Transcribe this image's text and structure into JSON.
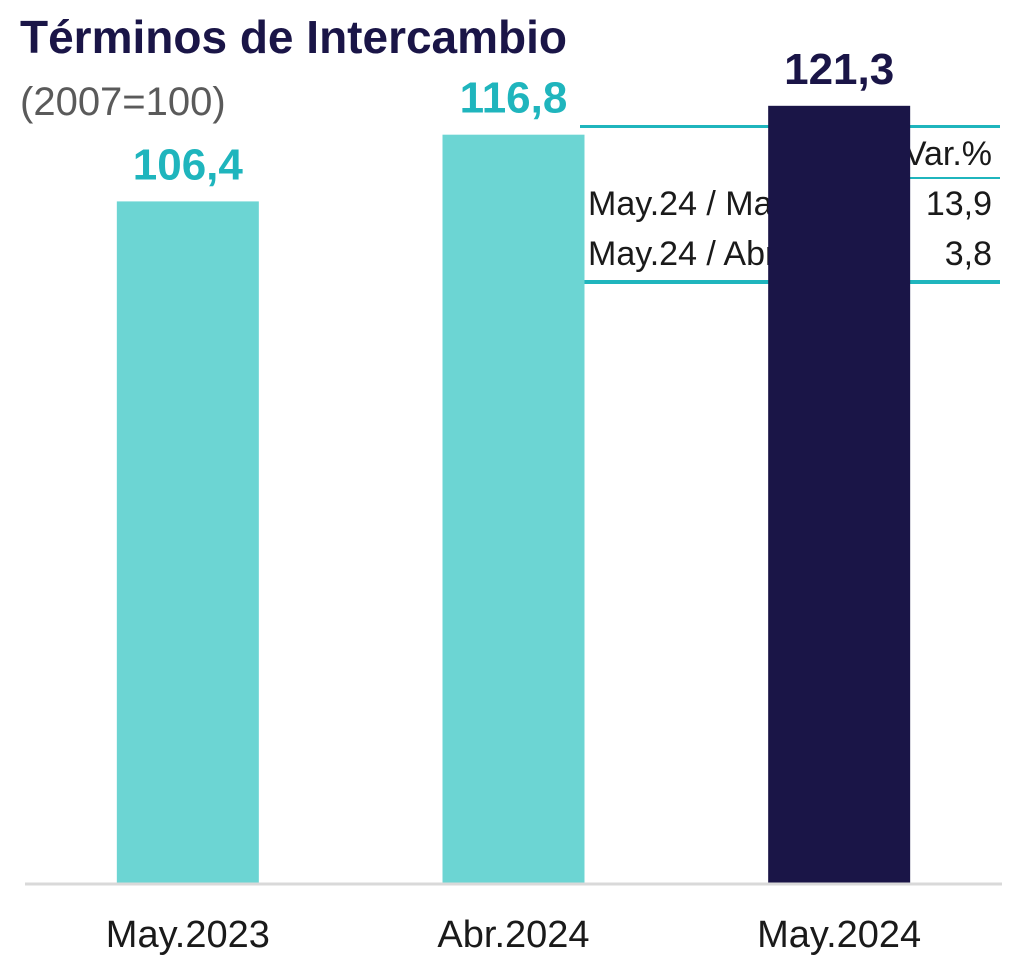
{
  "title": "Términos de Intercambio",
  "subtitle": "(2007=100)",
  "variation_table": {
    "header": "Var.%",
    "rows": [
      {
        "label": "May.24 / May.23",
        "value": "13,9"
      },
      {
        "label": "May.24 / Abr.24",
        "value": "3,8"
      }
    ]
  },
  "colors": {
    "title": "#1a1547",
    "accent_light": "#6cd5d3",
    "accent_dark": "#1a1547",
    "label_light": "#1fb5bd",
    "rule": "#1fb5bd",
    "axis": "#d9d9d9"
  },
  "chart_data": {
    "type": "bar",
    "categories": [
      "May.2023",
      "Abr.2024",
      "May.2024"
    ],
    "values": [
      106.4,
      116.8,
      121.3
    ],
    "value_labels": [
      "106,4",
      "116,8",
      "121,3"
    ],
    "bar_colors": [
      "#6cd5d3",
      "#6cd5d3",
      "#1a1547"
    ],
    "label_colors": [
      "#1fb5bd",
      "#1fb5bd",
      "#1a1547"
    ],
    "title": "Términos de Intercambio",
    "xlabel": "",
    "ylabel": "",
    "ylim": [
      0,
      130
    ],
    "grid": false,
    "legend": "none"
  }
}
